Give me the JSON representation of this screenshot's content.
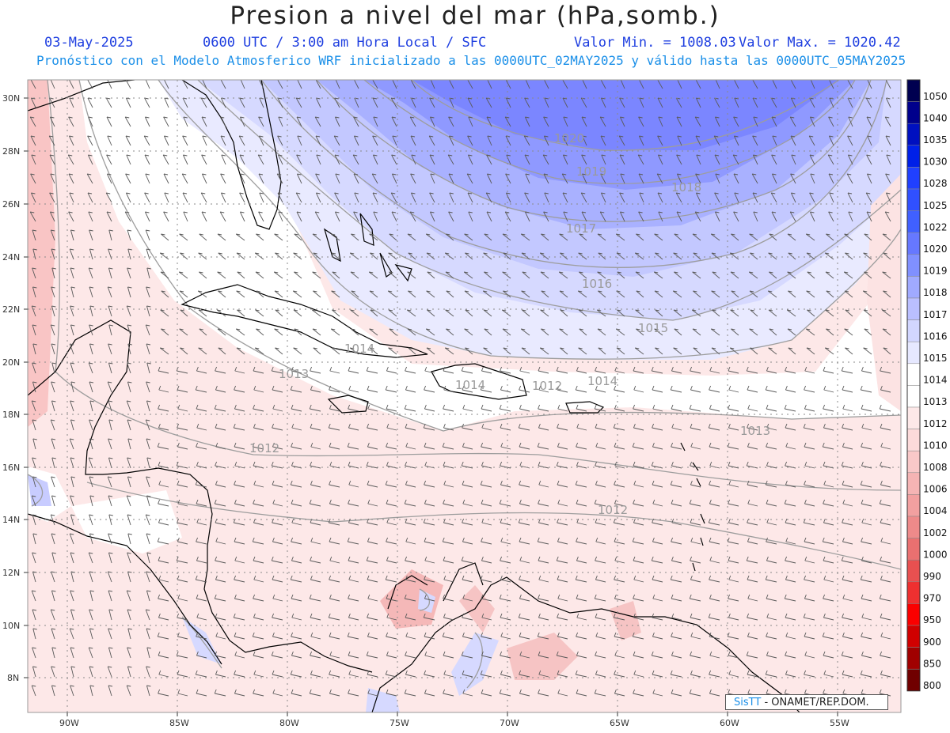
{
  "header": {
    "title": "Presion a nivel del mar (hPa,somb.)",
    "date": "03-May-2025",
    "time": "0600 UTC / 3:00 am Hora Local / SFC",
    "min": "Valor Min. = 1008.03",
    "max": "Valor Max. = 1020.42",
    "model_line": "Pronóstico con el Modelo Atmosferico WRF inicializado a las 0000UTC_02MAY2025 y válido hasta las  0000UTC_05MAY2025"
  },
  "axes": {
    "lat_labels": [
      "30N",
      "28N",
      "26N",
      "24N",
      "22N",
      "20N",
      "18N",
      "16N",
      "14N",
      "12N",
      "10N",
      "8N"
    ],
    "lon_labels": [
      "90W",
      "85W",
      "80W",
      "75W",
      "70W",
      "65W",
      "60W",
      "55W"
    ]
  },
  "isobars": [
    "1020",
    "1019",
    "1018",
    "1017",
    "1016",
    "1015",
    "1014",
    "1014",
    "1014",
    "1013",
    "1013",
    "1012",
    "1012",
    "1012"
  ],
  "colorbar": {
    "labels": [
      "1050",
      "1040",
      "1035",
      "1030",
      "1028",
      "1025",
      "1022",
      "1020",
      "1019",
      "1018",
      "1017",
      "1016",
      "1015",
      "1014",
      "1013",
      "1012",
      "1010",
      "1008",
      "1006",
      "1004",
      "1002",
      "1000",
      "990",
      "970",
      "950",
      "900",
      "850",
      "800"
    ],
    "colors": [
      "#000050",
      "#00008c",
      "#0010c0",
      "#0020e8",
      "#2040ff",
      "#3050ff",
      "#4060ff",
      "#6678ff",
      "#8090ff",
      "#a0aaff",
      "#babfff",
      "#d2d6ff",
      "#e6e8ff",
      "#ffffff",
      "#ffffff",
      "#fde8e8",
      "#fcdada",
      "#f9c8c8",
      "#f5b4b4",
      "#f2a0a0",
      "#ee8a8a",
      "#ea7070",
      "#e85050",
      "#ee3030",
      "#fa0000",
      "#d00000",
      "#a00000",
      "#700000"
    ]
  },
  "credit": {
    "brand": "SisTT",
    "text": "- ONAMET/REP.DOM."
  }
}
